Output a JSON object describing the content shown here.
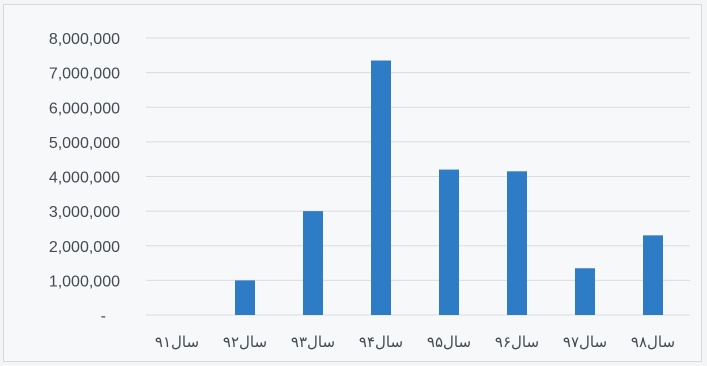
{
  "chart_data": {
    "type": "bar",
    "title": "",
    "xlabel": "",
    "ylabel": "",
    "categories": [
      "سال۹۱",
      "سال۹۲",
      "سال۹۳",
      "سال۹۴",
      "سال۹۵",
      "سال۹۶",
      "سال۹۷",
      "سال۹۸"
    ],
    "values": [
      0,
      1000000,
      3000000,
      7350000,
      4200000,
      4150000,
      1350000,
      2300000
    ],
    "ylim": [
      0,
      8000000
    ],
    "yticks": [
      0,
      1000000,
      2000000,
      3000000,
      4000000,
      5000000,
      6000000,
      7000000,
      8000000
    ],
    "ytick_labels": [
      "-",
      "1,000,000",
      "2,000,000",
      "3,000,000",
      "4,000,000",
      "5,000,000",
      "6,000,000",
      "7,000,000",
      "8,000,000"
    ],
    "grid": true,
    "legend": "none",
    "bar_color": "#2e7cc6",
    "grid_color": "#d9dce1",
    "text_color": "#444a52"
  }
}
